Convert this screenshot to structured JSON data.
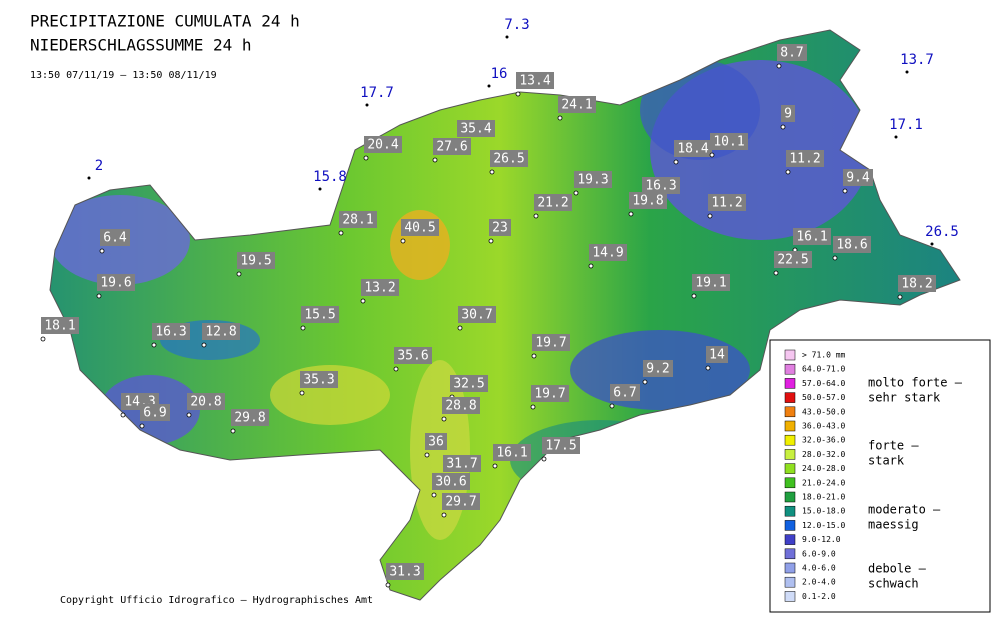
{
  "title": [
    "PRECIPITAZIONE CUMULATA 24 h",
    "NIEDERSCHLAGSSUMME 24 h"
  ],
  "period": "13:50 07/11/19 – 13:50 08/11/19",
  "stations": [
    13.4,
    24.1,
    8.7,
    9,
    35.4,
    20.4,
    27.6,
    26.5,
    18.4,
    10.1,
    11.2,
    19.3,
    16.3,
    9.4,
    21.2,
    19.8,
    11.2,
    28.1,
    40.5,
    23,
    6.4,
    16.1,
    18.6,
    14.9,
    22.5,
    19.5,
    19.6,
    19.1,
    13.2,
    18.2,
    15.5,
    30.7,
    18.1,
    16.3,
    12.8,
    19.7,
    35.6,
    14,
    9.2,
    35.3,
    32.5,
    14.3,
    20.8,
    6.7,
    19.7,
    28.8,
    6.9,
    29.8,
    36,
    16.1,
    17.5,
    31.7,
    30.6,
    29.7,
    31.3
  ],
  "outside_stations": [
    7.3,
    16,
    17.7,
    2,
    15.8,
    13.7,
    17.1,
    26.5
  ],
  "legend": {
    "items": [
      {
        "label": "> 71.0 mm",
        "color": "#f5c6f0"
      },
      {
        "label": "64.0-71.0",
        "color": "#e080e0"
      },
      {
        "label": "57.0-64.0",
        "color": "#e020e0"
      },
      {
        "label": "50.0-57.0",
        "color": "#e01010"
      },
      {
        "label": "43.0-50.0",
        "color": "#f08010"
      },
      {
        "label": "36.0-43.0",
        "color": "#f0b000"
      },
      {
        "label": "32.0-36.0",
        "color": "#f0f000"
      },
      {
        "label": "28.0-32.0",
        "color": "#c8f040"
      },
      {
        "label": "24.0-28.0",
        "color": "#90e020"
      },
      {
        "label": "21.0-24.0",
        "color": "#40c020"
      },
      {
        "label": "18.0-21.0",
        "color": "#20a040"
      },
      {
        "label": "15.0-18.0",
        "color": "#109080"
      },
      {
        "label": "12.0-15.0",
        "color": "#1060e0"
      },
      {
        "label": "9.0-12.0",
        "color": "#4040c8"
      },
      {
        "label": "6.0-9.0",
        "color": "#7070d8"
      },
      {
        "label": "4.0-6.0",
        "color": "#90a0e8"
      },
      {
        "label": "2.0-4.0",
        "color": "#b0c0f0"
      },
      {
        "label": "0.1-2.0",
        "color": "#d0dcf8"
      }
    ],
    "classes": [
      [
        "molto forte –",
        "sehr stark"
      ],
      [
        "forte –",
        "stark"
      ],
      [
        "moderato –",
        "maessig"
      ],
      [
        "debole –",
        "schwach"
      ]
    ]
  },
  "copyright": "Copyright Ufficio Idrografico – Hydrographisches Amt"
}
